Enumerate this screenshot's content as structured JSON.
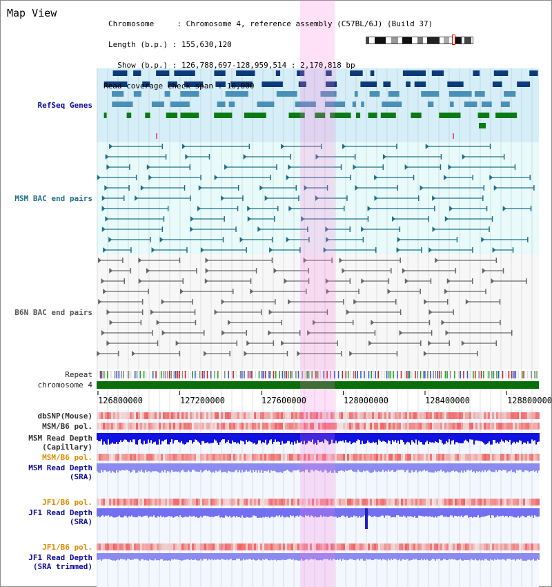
{
  "header": {
    "title": "Map View",
    "info_lines": [
      "Chromosome     : Chromosome 4, reference assembly (C57BL/6J) (Build 37)",
      "Length (b.p.) : 155,630,120",
      "  Show (b.p.) : 126,788,697-128,959,514 : 2,170,818 bp",
      "Read coverage check span : 10,000"
    ]
  },
  "tracks": {
    "refseq": "RefSeq Genes",
    "msm_bac": "MSM BAC end pairs",
    "b6n_bac": "B6N BAC end pairs",
    "repeat": "Repeat",
    "chromosome": "chromosome 4",
    "dbsnp": "dbSNP(Mouse)",
    "msm_b6_pol_1": "MSM/B6 pol.",
    "msm_read_depth_cap_1": "MSM Read Depth",
    "msm_read_depth_cap_2": "(Capillary)",
    "msm_b6_pol_2": "MSM/B6 pol.",
    "msm_read_depth_sra_1": "MSM Read Depth",
    "msm_read_depth_sra_2": "(SRA)",
    "jf1_b6_pol_1": "JF1/B6 pol.",
    "jf1_read_depth_sra_1": "JF1 Read Depth",
    "jf1_read_depth_sra_2": "(SRA)",
    "jf1_b6_pol_2": "JF1/B6 pol.",
    "jf1_read_depth_trim_1": "JF1 Read Depth",
    "jf1_read_depth_trim_2": "(SRA trimmed)"
  },
  "ruler": [
    "126800000",
    "127200000",
    "127600000",
    "128000000",
    "128400000",
    "128800000"
  ],
  "colors": {
    "refseq_bg": "#d6eef8",
    "refseq_dark": "#0b3a78",
    "refseq_mid": "#4a8fb5",
    "refseq_green": "#0a7a14",
    "msm_bac": "#1e6f86",
    "msm_bac_bg": "#e8fafa",
    "b6n_bac": "#666666",
    "b6n_bac_bg": "#f6f6f6",
    "highlight": "#ff78dc",
    "chromosome": "#0a6e0a",
    "label_blue": "#0a0a9a",
    "label_teal": "#1e6f86",
    "label_orange": "#e08a00"
  }
}
